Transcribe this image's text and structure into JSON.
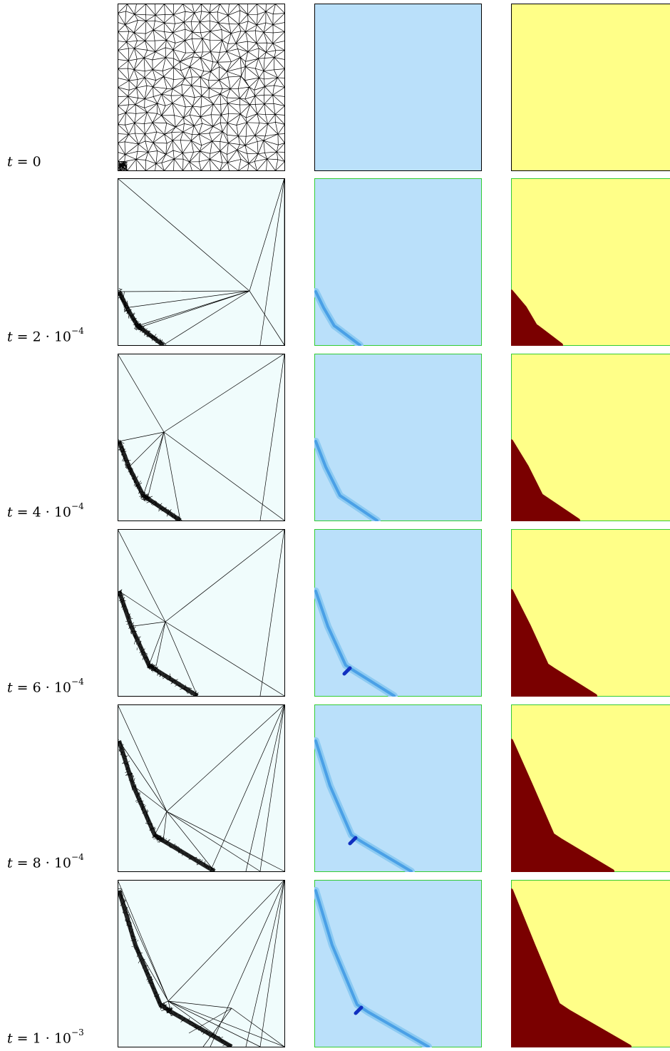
{
  "figure": {
    "rows": [
      {
        "label": {
          "var": "t",
          "value": "0",
          "exp": ""
        },
        "stage": 0
      },
      {
        "label": {
          "var": "t",
          "value": "2 · 10",
          "exp": "−4"
        },
        "stage": 1
      },
      {
        "label": {
          "var": "t",
          "value": "4 · 10",
          "exp": "−4"
        },
        "stage": 2
      },
      {
        "label": {
          "var": "t",
          "value": "6 · 10",
          "exp": "−4"
        },
        "stage": 3
      },
      {
        "label": {
          "var": "t",
          "value": "8 · 10",
          "exp": "−4"
        },
        "stage": 4
      },
      {
        "label": {
          "var": "t",
          "value": "1 · 10",
          "exp": "−3"
        },
        "stage": 5
      }
    ],
    "colors": {
      "mesh_bg": "#f0fcfc",
      "mesh_line": "#000000",
      "field_bg": "#bae0fa",
      "field_light": "#8ccaf2",
      "field_mid": "#4aa0e6",
      "field_dark": "#1030c0",
      "field_border": "#33cc33",
      "phase_bg": "#ffff88",
      "phase_crack": "#7a0000",
      "frame": "#000000"
    }
  }
}
